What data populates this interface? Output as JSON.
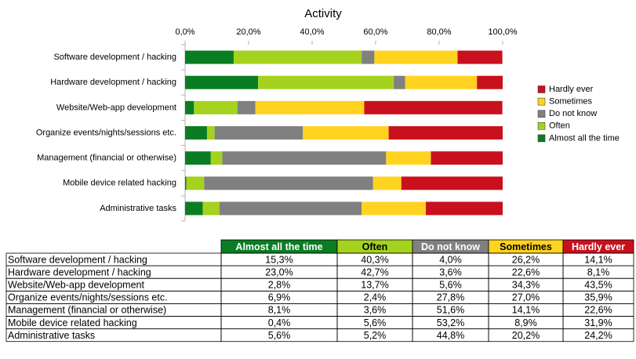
{
  "chart_data": {
    "type": "stacked_bar_horizontal",
    "title": "Activity",
    "categories": [
      "Software development / hacking",
      "Hardware development  / hacking",
      "Website/Web-app development",
      "Organize events/nights/sessions etc.",
      "Management (financial or otherwise)",
      "Mobile device related hacking",
      "Administrative tasks"
    ],
    "series": [
      {
        "name": "Almost all the time",
        "color": "#0a7d23",
        "text_color": "#ffffff",
        "values": [
          15.3,
          23.0,
          2.8,
          6.9,
          8.1,
          0.4,
          5.6
        ],
        "value_labels": [
          "15,3%",
          "23,0%",
          "2,8%",
          "6,9%",
          "8,1%",
          "0,4%",
          "5,6%"
        ]
      },
      {
        "name": "Often",
        "color": "#a5d21e",
        "text_color": "#000000",
        "values": [
          40.3,
          42.7,
          13.7,
          2.4,
          3.6,
          5.6,
          5.2
        ],
        "value_labels": [
          "40,3%",
          "42,7%",
          "13,7%",
          "2,4%",
          "3,6%",
          "5,6%",
          "5,2%"
        ]
      },
      {
        "name": "Do not know",
        "color": "#808080",
        "text_color": "#ffffff",
        "values": [
          4.0,
          3.6,
          5.6,
          27.8,
          51.6,
          53.2,
          44.8
        ],
        "value_labels": [
          "4,0%",
          "3,6%",
          "5,6%",
          "27,8%",
          "51,6%",
          "53,2%",
          "44,8%"
        ]
      },
      {
        "name": "Sometimes",
        "color": "#ffd320",
        "text_color": "#000000",
        "values": [
          26.2,
          22.6,
          34.3,
          27.0,
          14.1,
          8.9,
          20.2
        ],
        "value_labels": [
          "26,2%",
          "22,6%",
          "34,3%",
          "27,0%",
          "14,1%",
          "8,9%",
          "20,2%"
        ]
      },
      {
        "name": "Hardly ever",
        "color": "#c9111e",
        "text_color": "#ffffff",
        "values": [
          14.1,
          8.1,
          43.5,
          35.9,
          22.6,
          31.9,
          24.2
        ],
        "value_labels": [
          "14,1%",
          "8,1%",
          "43,5%",
          "35,9%",
          "22,6%",
          "31,9%",
          "24,2%"
        ]
      }
    ],
    "xlim": [
      0,
      100
    ],
    "xticks": [
      {
        "value": 0,
        "label": "0,0%"
      },
      {
        "value": 20,
        "label": "20,0%"
      },
      {
        "value": 40,
        "label": "40,0%"
      },
      {
        "value": 60,
        "label": "60,0%"
      },
      {
        "value": 80,
        "label": "80,0%"
      },
      {
        "value": 100,
        "label": "100,0%"
      }
    ],
    "grid": false,
    "legend": "right",
    "legend_reversed": true
  }
}
